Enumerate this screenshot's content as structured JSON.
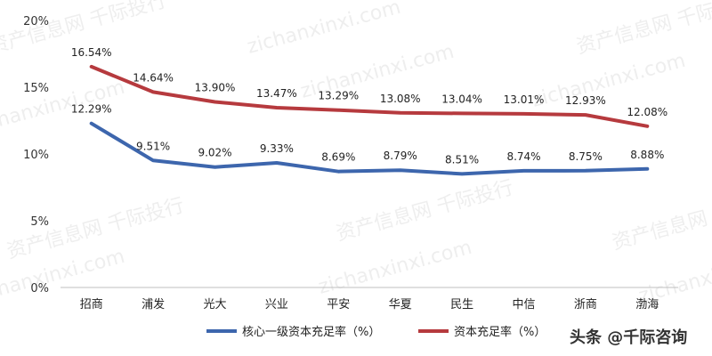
{
  "chart_data": {
    "type": "line",
    "categories": [
      "招商",
      "浦发",
      "光大",
      "兴业",
      "平安",
      "华夏",
      "民生",
      "中信",
      "浙商",
      "渤海"
    ],
    "series": [
      {
        "name": "核心一级资本充足率（%）",
        "color": "#3d66ad",
        "values": [
          12.29,
          9.51,
          9.02,
          9.33,
          8.69,
          8.79,
          8.51,
          8.74,
          8.75,
          8.88
        ],
        "labels": [
          "12.29%",
          "9.51%",
          "9.02%",
          "9.33%",
          "8.69%",
          "8.79%",
          "8.51%",
          "8.74%",
          "8.75%",
          "8.88%"
        ]
      },
      {
        "name": "资本充足率（%）",
        "color": "#b63a3e",
        "values": [
          16.54,
          14.64,
          13.9,
          13.47,
          13.29,
          13.08,
          13.04,
          13.01,
          12.93,
          12.08
        ],
        "labels": [
          "16.54%",
          "14.64%",
          "13.90%",
          "13.47%",
          "13.29%",
          "13.08%",
          "13.04%",
          "13.01%",
          "12.93%",
          "12.08%"
        ]
      }
    ],
    "y_ticks": [
      "0%",
      "5%",
      "10%",
      "15%",
      "20%"
    ],
    "ylim": [
      0,
      20
    ],
    "grid": false,
    "legend_position": "bottom"
  },
  "watermark": {
    "text_cn": "资产信息网 千际投行",
    "text_en": "zichanxinxi.com"
  },
  "credit": "头条 @千际咨询"
}
